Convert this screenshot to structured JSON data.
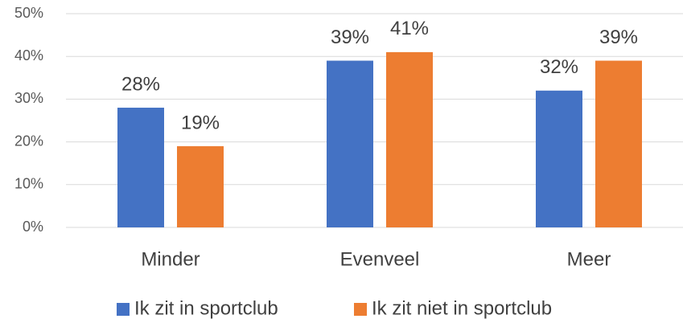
{
  "chart_data": {
    "type": "bar",
    "categories": [
      "Minder",
      "Evenveel",
      "Meer"
    ],
    "series": [
      {
        "name": "Ik zit in sportclub",
        "color": "#4472c4",
        "values": [
          28,
          39,
          32
        ],
        "value_labels": [
          "28%",
          "39%",
          "32%"
        ]
      },
      {
        "name": "Ik zit niet in sportclub",
        "color": "#ed7d31",
        "values": [
          19,
          41,
          39
        ],
        "value_labels": [
          "19%",
          "41%",
          "39%"
        ]
      }
    ],
    "ylim": [
      0,
      50
    ],
    "yticks": [
      {
        "value": 0,
        "label": "0%"
      },
      {
        "value": 10,
        "label": "10%"
      },
      {
        "value": 20,
        "label": "20%"
      },
      {
        "value": 30,
        "label": "30%"
      },
      {
        "value": 40,
        "label": "40%"
      },
      {
        "value": 50,
        "label": "50%"
      }
    ],
    "grid": true,
    "legend": "bottom"
  }
}
